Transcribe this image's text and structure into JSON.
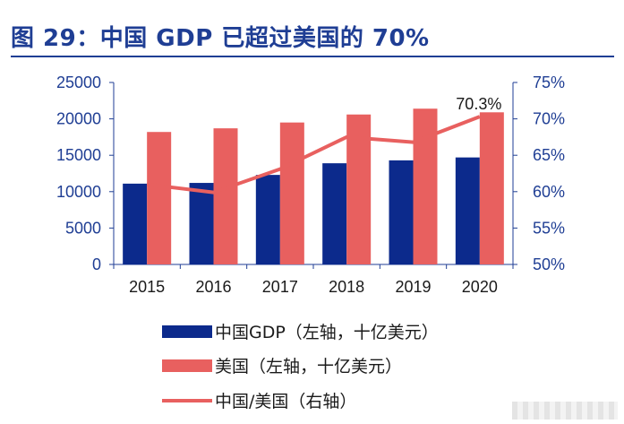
{
  "title": "图 29：中国 GDP 已超过美国的 70%",
  "colors": {
    "title": "#1f3e94",
    "china_bar": "#0c2a8c",
    "us_bar": "#e8605f",
    "ratio_line": "#e8605f",
    "axis": "#1f3e94"
  },
  "chart_data": {
    "type": "bar",
    "categories": [
      "2015",
      "2016",
      "2017",
      "2018",
      "2019",
      "2020"
    ],
    "series": [
      {
        "name": "中国GDP（左轴，十亿美元）",
        "type": "bar",
        "axis": "left",
        "values": [
          11100,
          11200,
          12300,
          13900,
          14300,
          14700
        ]
      },
      {
        "name": "美国（左轴，十亿美元）",
        "type": "bar",
        "axis": "left",
        "values": [
          18200,
          18700,
          19500,
          20600,
          21400,
          20900
        ]
      },
      {
        "name": "中国/美国（右轴）",
        "type": "line",
        "axis": "right",
        "values": [
          61.0,
          59.9,
          63.1,
          67.5,
          66.8,
          70.3
        ]
      }
    ],
    "y_left": {
      "lim": [
        0,
        25000
      ],
      "ticks": [
        "0",
        "5000",
        "10000",
        "15000",
        "20000",
        "25000"
      ]
    },
    "y_right": {
      "lim": [
        50,
        75
      ],
      "ticks": [
        "50%",
        "55%",
        "60%",
        "65%",
        "70%",
        "75%"
      ]
    },
    "annotations": [
      {
        "category": "2020",
        "series": 2,
        "text": "70.3%"
      }
    ],
    "legend_position": "bottom",
    "grid": false
  }
}
